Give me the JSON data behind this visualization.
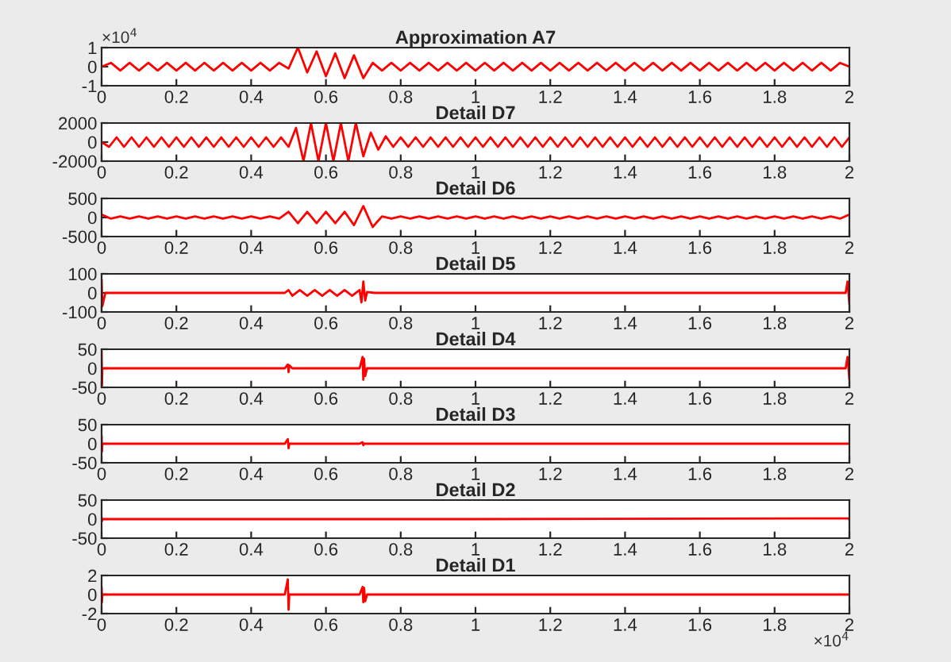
{
  "chart_data": [
    {
      "type": "line",
      "title": "Approximation A7",
      "annotations": [
        "×10$^{4}$"
      ],
      "xlim": [
        0,
        2
      ],
      "xticks": [
        0,
        0.2,
        0.4,
        0.6,
        0.8,
        1,
        1.2,
        1.4,
        1.6,
        1.8,
        2
      ],
      "ylim": [
        -1,
        1
      ],
      "yticks": [
        -1,
        0,
        1
      ],
      "grid": false,
      "legend": false,
      "series": [
        {
          "color": "#ff0000",
          "x": [
            0,
            0.025,
            0.05,
            0.075,
            0.1,
            0.125,
            0.15,
            0.175,
            0.2,
            0.225,
            0.25,
            0.275,
            0.3,
            0.325,
            0.35,
            0.375,
            0.4,
            0.425,
            0.45,
            0.475,
            0.5,
            0.525,
            0.55,
            0.575,
            0.6,
            0.625,
            0.65,
            0.675,
            0.7,
            0.725,
            0.75,
            0.775,
            0.8,
            0.825,
            0.85,
            0.875,
            0.9,
            0.925,
            0.95,
            0.975,
            1,
            1.025,
            1.05,
            1.075,
            1.1,
            1.125,
            1.15,
            1.175,
            1.2,
            1.225,
            1.25,
            1.275,
            1.3,
            1.325,
            1.35,
            1.375,
            1.4,
            1.425,
            1.45,
            1.475,
            1.5,
            1.525,
            1.55,
            1.575,
            1.6,
            1.625,
            1.65,
            1.675,
            1.7,
            1.725,
            1.75,
            1.775,
            1.8,
            1.825,
            1.85,
            1.875,
            1.9,
            1.925,
            1.95,
            1.975,
            2
          ],
          "values": [
            0,
            0.2,
            -0.2,
            0.2,
            -0.2,
            0.2,
            -0.2,
            0.2,
            -0.2,
            0.2,
            -0.2,
            0.2,
            -0.2,
            0.2,
            -0.2,
            0.2,
            -0.2,
            0.2,
            -0.2,
            0.2,
            -0.1,
            1,
            -0.3,
            0.8,
            -0.5,
            0.7,
            -0.6,
            0.6,
            -0.6,
            0.2,
            -0.2,
            0.2,
            -0.2,
            0.2,
            -0.2,
            0.2,
            -0.2,
            0.2,
            -0.2,
            0.2,
            -0.2,
            0.2,
            -0.2,
            0.2,
            -0.2,
            0.2,
            -0.2,
            0.2,
            -0.2,
            0.2,
            -0.2,
            0.2,
            -0.2,
            0.2,
            -0.2,
            0.2,
            -0.2,
            0.2,
            -0.2,
            0.2,
            -0.2,
            0.2,
            -0.2,
            0.2,
            -0.2,
            0.2,
            -0.2,
            0.2,
            -0.2,
            0.2,
            -0.2,
            0.2,
            -0.2,
            0.2,
            -0.2,
            0.2,
            -0.2,
            0.2,
            -0.2,
            0.2,
            0
          ]
        }
      ]
    },
    {
      "type": "line",
      "title": "Detail D7",
      "xlim": [
        0,
        2
      ],
      "xticks": [
        0,
        0.2,
        0.4,
        0.6,
        0.8,
        1,
        1.2,
        1.4,
        1.6,
        1.8,
        2
      ],
      "ylim": [
        -2000,
        2000
      ],
      "yticks": [
        -2000,
        0,
        2000
      ],
      "grid": false,
      "legend": false,
      "series": [
        {
          "color": "#ff0000",
          "x": [
            0,
            0.02,
            0.04,
            0.06,
            0.08,
            0.1,
            0.12,
            0.14,
            0.16,
            0.18,
            0.2,
            0.22,
            0.24,
            0.26,
            0.28,
            0.3,
            0.32,
            0.34,
            0.36,
            0.38,
            0.4,
            0.42,
            0.44,
            0.46,
            0.48,
            0.5,
            0.52,
            0.54,
            0.56,
            0.58,
            0.6,
            0.62,
            0.64,
            0.66,
            0.68,
            0.7,
            0.72,
            0.74,
            0.76,
            0.78,
            0.8,
            0.82,
            0.84,
            0.86,
            0.88,
            0.9,
            0.92,
            0.94,
            0.96,
            0.98,
            1,
            1.02,
            1.04,
            1.06,
            1.08,
            1.1,
            1.12,
            1.14,
            1.16,
            1.18,
            1.2,
            1.22,
            1.24,
            1.26,
            1.28,
            1.3,
            1.32,
            1.34,
            1.36,
            1.38,
            1.4,
            1.42,
            1.44,
            1.46,
            1.48,
            1.5,
            1.52,
            1.54,
            1.56,
            1.58,
            1.6,
            1.62,
            1.64,
            1.66,
            1.68,
            1.7,
            1.72,
            1.74,
            1.76,
            1.78,
            1.8,
            1.82,
            1.84,
            1.86,
            1.88,
            1.9,
            1.92,
            1.94,
            1.96,
            1.98,
            2
          ],
          "values": [
            0,
            -500,
            500,
            -500,
            500,
            -500,
            500,
            -500,
            500,
            -500,
            500,
            -500,
            500,
            -500,
            500,
            -500,
            500,
            -500,
            500,
            -500,
            500,
            -500,
            500,
            -500,
            500,
            -500,
            1500,
            -2000,
            2000,
            -2000,
            2000,
            -2000,
            2000,
            -2000,
            2000,
            -1500,
            1000,
            -800,
            600,
            -500,
            500,
            -500,
            500,
            -500,
            500,
            -500,
            500,
            -500,
            500,
            -500,
            500,
            -500,
            500,
            -500,
            500,
            -500,
            500,
            -500,
            500,
            -500,
            500,
            -500,
            500,
            -500,
            500,
            -500,
            500,
            -500,
            500,
            -500,
            500,
            -500,
            500,
            -500,
            500,
            -500,
            500,
            -500,
            500,
            -500,
            500,
            -500,
            500,
            -500,
            500,
            -500,
            500,
            -500,
            500,
            -500,
            500,
            -500,
            500,
            -500,
            500,
            -500,
            500,
            -500,
            500,
            -500,
            500
          ]
        }
      ]
    },
    {
      "type": "line",
      "title": "Detail D6",
      "xlim": [
        0,
        2
      ],
      "xticks": [
        0,
        0.2,
        0.4,
        0.6,
        0.8,
        1,
        1.2,
        1.4,
        1.6,
        1.8,
        2
      ],
      "ylim": [
        -500,
        500
      ],
      "yticks": [
        -500,
        0,
        500
      ],
      "grid": false,
      "legend": false,
      "series": [
        {
          "color": "#ff0000",
          "x": [
            0,
            0.025,
            0.05,
            0.075,
            0.1,
            0.125,
            0.15,
            0.175,
            0.2,
            0.225,
            0.25,
            0.275,
            0.3,
            0.325,
            0.35,
            0.375,
            0.4,
            0.425,
            0.45,
            0.475,
            0.5,
            0.525,
            0.55,
            0.575,
            0.6,
            0.625,
            0.65,
            0.675,
            0.7,
            0.725,
            0.75,
            0.775,
            0.8,
            0.825,
            0.85,
            0.875,
            0.9,
            0.925,
            0.95,
            0.975,
            1,
            1.025,
            1.05,
            1.075,
            1.1,
            1.125,
            1.15,
            1.175,
            1.2,
            1.225,
            1.25,
            1.275,
            1.3,
            1.325,
            1.35,
            1.375,
            1.4,
            1.425,
            1.45,
            1.475,
            1.5,
            1.525,
            1.55,
            1.575,
            1.6,
            1.625,
            1.65,
            1.675,
            1.7,
            1.725,
            1.75,
            1.775,
            1.8,
            1.825,
            1.85,
            1.875,
            1.9,
            1.925,
            1.95,
            1.975,
            2
          ],
          "values": [
            80,
            -30,
            30,
            -30,
            30,
            -30,
            30,
            -30,
            30,
            -30,
            30,
            -30,
            30,
            -30,
            30,
            -30,
            30,
            -30,
            30,
            -30,
            150,
            -150,
            150,
            -150,
            150,
            -150,
            150,
            -200,
            300,
            -250,
            30,
            -30,
            30,
            -30,
            30,
            -30,
            30,
            -30,
            30,
            -30,
            30,
            -30,
            30,
            -30,
            30,
            -30,
            30,
            -30,
            30,
            -30,
            30,
            -30,
            30,
            -30,
            30,
            -30,
            30,
            -30,
            30,
            -30,
            30,
            -30,
            30,
            -30,
            30,
            -30,
            30,
            -30,
            30,
            -30,
            30,
            -30,
            30,
            -30,
            30,
            -30,
            30,
            -30,
            30,
            -30,
            80
          ]
        }
      ]
    },
    {
      "type": "line",
      "title": "Detail D5",
      "xlim": [
        0,
        2
      ],
      "xticks": [
        0,
        0.2,
        0.4,
        0.6,
        0.8,
        1,
        1.2,
        1.4,
        1.6,
        1.8,
        2
      ],
      "ylim": [
        -100,
        100
      ],
      "yticks": [
        -100,
        0,
        100
      ],
      "grid": false,
      "legend": false,
      "series": [
        {
          "color": "#ff0000",
          "x": [
            0,
            0.002,
            0.01,
            0.25,
            0.49,
            0.5,
            0.51,
            0.53,
            0.55,
            0.57,
            0.59,
            0.61,
            0.63,
            0.65,
            0.67,
            0.69,
            0.695,
            0.7,
            0.705,
            0.71,
            0.73,
            1,
            1.5,
            1.99,
            1.995,
            2
          ],
          "values": [
            70,
            -70,
            0,
            0,
            0,
            15,
            -15,
            15,
            -15,
            15,
            -15,
            15,
            -15,
            15,
            -15,
            15,
            -50,
            60,
            -40,
            5,
            0,
            0,
            0,
            0,
            60,
            -60
          ]
        }
      ]
    },
    {
      "type": "line",
      "title": "Detail D4",
      "xlim": [
        0,
        2
      ],
      "xticks": [
        0,
        0.2,
        0.4,
        0.6,
        0.8,
        1,
        1.2,
        1.4,
        1.6,
        1.8,
        2
      ],
      "ylim": [
        -50,
        50
      ],
      "yticks": [
        -50,
        0,
        50
      ],
      "grid": false,
      "legend": false,
      "series": [
        {
          "color": "#ff0000",
          "x": [
            0,
            0.001,
            0.002,
            0.01,
            0.49,
            0.498,
            0.5,
            0.502,
            0.51,
            0.69,
            0.698,
            0.7,
            0.702,
            0.705,
            0.71,
            1,
            1.99,
            1.995,
            2
          ],
          "values": [
            45,
            -45,
            0,
            0,
            0,
            10,
            -10,
            8,
            0,
            0,
            30,
            -30,
            25,
            -20,
            0,
            0,
            0,
            30,
            -30
          ]
        }
      ]
    },
    {
      "type": "line",
      "title": "Detail D3",
      "xlim": [
        0,
        2
      ],
      "xticks": [
        0,
        0.2,
        0.4,
        0.6,
        0.8,
        1,
        1.2,
        1.4,
        1.6,
        1.8,
        2
      ],
      "ylim": [
        -50,
        50
      ],
      "yticks": [
        -50,
        0,
        50
      ],
      "grid": false,
      "legend": false,
      "series": [
        {
          "color": "#ff0000",
          "x": [
            0,
            0.001,
            0.002,
            0.01,
            0.49,
            0.498,
            0.5,
            0.502,
            0.51,
            0.69,
            0.698,
            0.7,
            0.702,
            0.71,
            1,
            2
          ],
          "values": [
            20,
            -20,
            0,
            0,
            0,
            12,
            -12,
            0,
            0,
            0,
            4,
            -4,
            0,
            0,
            0,
            0
          ]
        }
      ]
    },
    {
      "type": "line",
      "title": "Detail D2",
      "xlim": [
        0,
        2
      ],
      "xticks": [
        0,
        0.2,
        0.4,
        0.6,
        0.8,
        1,
        1.2,
        1.4,
        1.6,
        1.8,
        2
      ],
      "ylim": [
        -50,
        50
      ],
      "yticks": [
        -50,
        0,
        50
      ],
      "grid": false,
      "legend": false,
      "series": [
        {
          "color": "#ff0000",
          "x": [
            0,
            0.001,
            0.002,
            0.01,
            1,
            1.998,
            2
          ],
          "values": [
            5,
            -5,
            0,
            0,
            0,
            2,
            -2
          ]
        }
      ]
    },
    {
      "type": "line",
      "title": "Detail D1",
      "annotations": [
        "×10$^{4}$"
      ],
      "xlim": [
        0,
        2
      ],
      "xticks": [
        0,
        0.2,
        0.4,
        0.6,
        0.8,
        1,
        1.2,
        1.4,
        1.6,
        1.8,
        2
      ],
      "ylim": [
        -2,
        2
      ],
      "yticks": [
        -2,
        0,
        2
      ],
      "grid": false,
      "legend": false,
      "series": [
        {
          "color": "#ff0000",
          "x": [
            0,
            0.001,
            0.002,
            0.01,
            0.49,
            0.498,
            0.5,
            0.502,
            0.51,
            0.69,
            0.698,
            0.7,
            0.702,
            0.705,
            0.71,
            1,
            2
          ],
          "values": [
            0.8,
            -0.8,
            0,
            0,
            0,
            1.6,
            -1.6,
            0,
            0,
            0,
            0.8,
            -0.8,
            0.7,
            -0.7,
            0,
            0,
            0
          ]
        }
      ]
    }
  ]
}
